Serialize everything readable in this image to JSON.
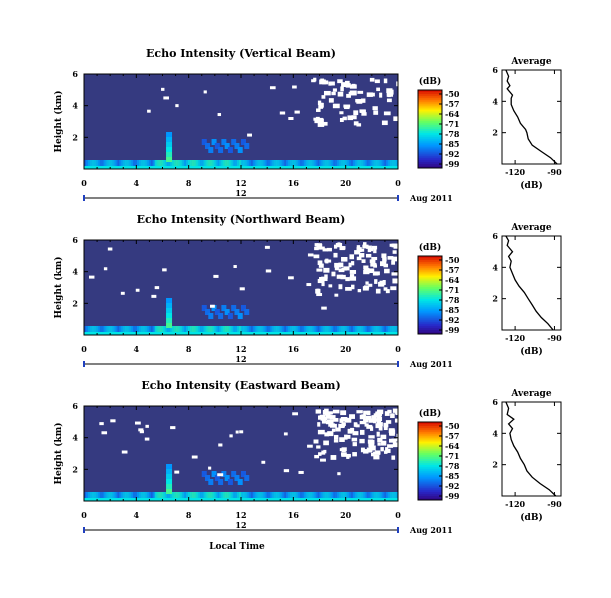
{
  "chart_data": [
    {
      "type": "heatmap",
      "title": "Echo Intensity (Vertical Beam)",
      "ylabel": "Height (km)",
      "x_ticks": [
        "0",
        "4",
        "8",
        "12",
        "16",
        "20",
        "0"
      ],
      "y_ticks": [
        "2",
        "4",
        "6"
      ],
      "xlim": [
        0,
        24
      ],
      "ylim": [
        0,
        6
      ],
      "date_label": "12",
      "date_suffix": "Aug 2011",
      "colorbar": {
        "unit": "(dB)",
        "ticks": [
          "-50",
          "-57",
          "-64",
          "-71",
          "-78",
          "-85",
          "-92",
          "-99"
        ],
        "range": [
          -99,
          -50
        ]
      },
      "profile": {
        "title": "Average",
        "xlabel": "(dB)",
        "x_ticks": [
          "-120",
          "-90"
        ],
        "y_ticks": [
          "2",
          "4",
          "6"
        ],
        "xlim": [
          -130,
          -85
        ],
        "ylim": [
          0,
          6
        ],
        "points": [
          [
            -88,
            0.0
          ],
          [
            -93,
            0.4
          ],
          [
            -100,
            0.8
          ],
          [
            -107,
            1.2
          ],
          [
            -110,
            1.6
          ],
          [
            -111,
            2.0
          ],
          [
            -112,
            2.2
          ],
          [
            -116,
            2.6
          ],
          [
            -118,
            3.0
          ],
          [
            -121,
            3.4
          ],
          [
            -123,
            3.8
          ],
          [
            -123,
            4.2
          ],
          [
            -122,
            4.4
          ],
          [
            -126,
            4.8
          ],
          [
            -124,
            5.0
          ],
          [
            -126,
            5.3
          ],
          [
            -125,
            5.6
          ],
          [
            -127,
            6.0
          ]
        ]
      }
    },
    {
      "type": "heatmap",
      "title": "Echo Intensity (Northward Beam)",
      "ylabel": "Height (km)",
      "x_ticks": [
        "0",
        "4",
        "8",
        "12",
        "16",
        "20",
        "0"
      ],
      "y_ticks": [
        "2",
        "4",
        "6"
      ],
      "xlim": [
        0,
        24
      ],
      "ylim": [
        0,
        6
      ],
      "date_label": "12",
      "date_suffix": "Aug 2011",
      "colorbar": {
        "unit": "(dB)",
        "ticks": [
          "-50",
          "-57",
          "-64",
          "-71",
          "-78",
          "-85",
          "-92",
          "-99"
        ],
        "range": [
          -99,
          -50
        ]
      },
      "profile": {
        "title": "Average",
        "xlabel": "(dB)",
        "x_ticks": [
          "-120",
          "-90"
        ],
        "y_ticks": [
          "2",
          "4",
          "6"
        ],
        "xlim": [
          -130,
          -85
        ],
        "ylim": [
          0,
          6
        ],
        "points": [
          [
            -91,
            0.0
          ],
          [
            -95,
            0.4
          ],
          [
            -100,
            0.8
          ],
          [
            -104,
            1.2
          ],
          [
            -107,
            1.6
          ],
          [
            -110,
            2.0
          ],
          [
            -113,
            2.4
          ],
          [
            -117,
            2.8
          ],
          [
            -120,
            3.2
          ],
          [
            -122,
            3.6
          ],
          [
            -124,
            4.0
          ],
          [
            -123,
            4.4
          ],
          [
            -125,
            4.7
          ],
          [
            -122,
            5.0
          ],
          [
            -126,
            5.4
          ],
          [
            -125,
            5.7
          ],
          [
            -127,
            6.0
          ]
        ]
      }
    },
    {
      "type": "heatmap",
      "title": "Echo Intensity (Eastward Beam)",
      "ylabel": "Height (km)",
      "x_ticks": [
        "0",
        "4",
        "8",
        "12",
        "16",
        "20",
        "0"
      ],
      "y_ticks": [
        "2",
        "4",
        "6"
      ],
      "xlim": [
        0,
        24
      ],
      "ylim": [
        0,
        6
      ],
      "date_label": "12",
      "date_suffix": "Aug 2011",
      "xlabel": "Local Time",
      "colorbar": {
        "unit": "(dB)",
        "ticks": [
          "-50",
          "-57",
          "-64",
          "-71",
          "-78",
          "-85",
          "-92",
          "-99"
        ],
        "range": [
          -99,
          -50
        ]
      },
      "profile": {
        "title": "Average",
        "xlabel": "(dB)",
        "x_ticks": [
          "-120",
          "-90"
        ],
        "y_ticks": [
          "2",
          "4",
          "6"
        ],
        "xlim": [
          -130,
          -85
        ],
        "ylim": [
          0,
          6
        ],
        "points": [
          [
            -89,
            0.0
          ],
          [
            -94,
            0.4
          ],
          [
            -101,
            0.8
          ],
          [
            -107,
            1.2
          ],
          [
            -111,
            1.6
          ],
          [
            -113,
            2.0
          ],
          [
            -116,
            2.4
          ],
          [
            -118,
            2.8
          ],
          [
            -121,
            3.2
          ],
          [
            -123,
            3.6
          ],
          [
            -124,
            4.0
          ],
          [
            -122,
            4.3
          ],
          [
            -125,
            4.6
          ],
          [
            -121,
            4.9
          ],
          [
            -126,
            5.2
          ],
          [
            -125,
            5.6
          ],
          [
            -127,
            6.0
          ]
        ]
      }
    }
  ]
}
